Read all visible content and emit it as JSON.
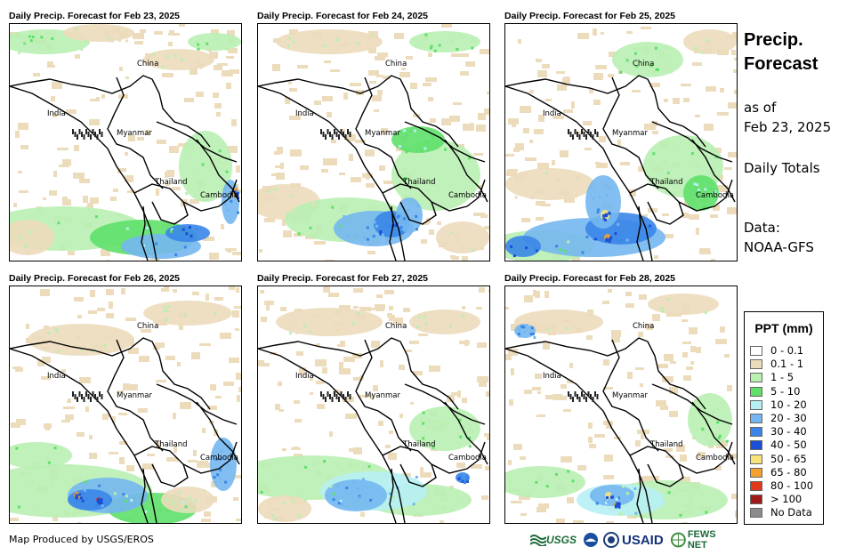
{
  "panels": [
    {
      "title": "Daily Precip. Forecast for Feb 23, 2025"
    },
    {
      "title": "Daily Precip. Forecast for Feb 24, 2025"
    },
    {
      "title": "Daily Precip. Forecast for Feb 25, 2025"
    },
    {
      "title": "Daily Precip. Forecast for Feb 26, 2025"
    },
    {
      "title": "Daily Precip. Forecast for Feb 27, 2025"
    },
    {
      "title": "Daily Precip. Forecast for Feb 28, 2025"
    }
  ],
  "country_labels": {
    "china": "China",
    "india": "India",
    "myanmar": "Myanmar",
    "thailand": "Thailand",
    "cambodia": "Cambodia"
  },
  "sidebar": {
    "title_line1": "Precip.",
    "title_line2": "Forecast",
    "asof_line1": "as of",
    "asof_line2": "Feb 23, 2025",
    "totals": "Daily Totals",
    "data_line1": "Data:",
    "data_line2": "NOAA-GFS"
  },
  "legend": {
    "title": "PPT (mm)",
    "items": [
      {
        "label": "0 - 0.1",
        "color": "#ffffff"
      },
      {
        "label": "0.1 - 1",
        "color": "#ecdcbc"
      },
      {
        "label": "1 - 5",
        "color": "#b9f0b2"
      },
      {
        "label": "5 - 10",
        "color": "#5ee06a"
      },
      {
        "label": "10 - 20",
        "color": "#b7f0f4"
      },
      {
        "label": "20 - 30",
        "color": "#74b7f0"
      },
      {
        "label": "30 - 40",
        "color": "#3a86e8"
      },
      {
        "label": "40 - 50",
        "color": "#1a4fd6"
      },
      {
        "label": "50 - 65",
        "color": "#f8e27a"
      },
      {
        "label": "65 - 80",
        "color": "#f2a030"
      },
      {
        "label": "80 - 100",
        "color": "#e03818"
      },
      {
        "label": "> 100",
        "color": "#a01818"
      },
      {
        "label": "No Data",
        "color": "#8c8c8c"
      }
    ]
  },
  "footer": {
    "credit": "Map Produced by USGS/EROS",
    "logo_usgs": "USGS",
    "logo_usaid": "USAID",
    "logo_fews": "FEWS NET"
  }
}
